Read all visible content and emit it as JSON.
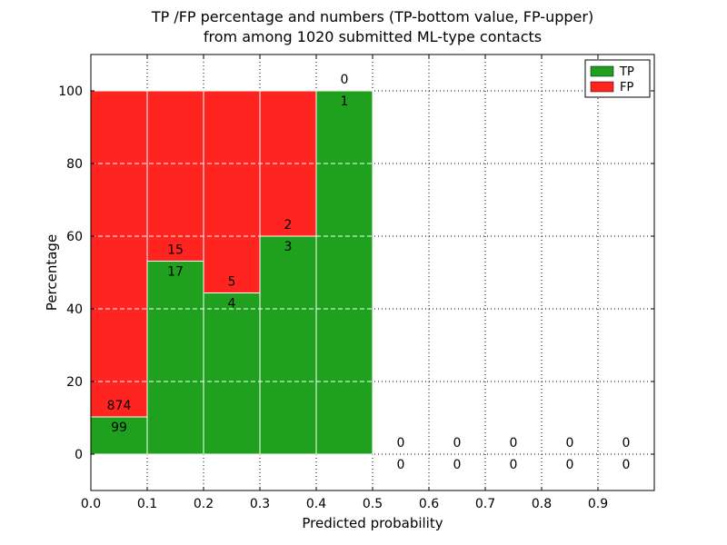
{
  "title": {
    "line1": "TP /FP percentage and numbers (TP-bottom value, FP-upper)",
    "line2": "from among 1020 submitted ML-type contacts"
  },
  "chart_data": {
    "type": "bar",
    "stacked": true,
    "title": "TP /FP percentage and numbers (TP-bottom value, FP-upper)\nfrom among 1020 submitted ML-type contacts",
    "xlabel": "Predicted probability",
    "ylabel": "Percentage",
    "total_contacts": 1020,
    "xlim": [
      0.0,
      1.0
    ],
    "ylim": [
      -10,
      110
    ],
    "xticks": [
      0.0,
      0.1,
      0.2,
      0.3,
      0.4,
      0.5,
      0.6,
      0.7,
      0.8,
      0.9
    ],
    "xtick_labels": [
      "0.0",
      "0.1",
      "0.2",
      "0.3",
      "0.4",
      "0.5",
      "0.6",
      "0.7",
      "0.8",
      "0.9"
    ],
    "yticks": [
      0,
      20,
      40,
      60,
      80,
      100
    ],
    "ytick_labels": [
      "0",
      "20",
      "40",
      "60",
      "80",
      "100"
    ],
    "grid": true,
    "tp_color": "#1fa01f",
    "fp_color": "#ff2420",
    "bins": [
      {
        "range": "0.0-0.1",
        "start": 0.0,
        "end": 0.1,
        "tp_count": 99,
        "fp_count": 874,
        "tp_pct": 10.2
      },
      {
        "range": "0.1-0.2",
        "start": 0.1,
        "end": 0.2,
        "tp_count": 17,
        "fp_count": 15,
        "tp_pct": 53.1
      },
      {
        "range": "0.2-0.3",
        "start": 0.2,
        "end": 0.3,
        "tp_count": 4,
        "fp_count": 5,
        "tp_pct": 44.4
      },
      {
        "range": "0.3-0.4",
        "start": 0.3,
        "end": 0.4,
        "tp_count": 3,
        "fp_count": 2,
        "tp_pct": 60.0
      },
      {
        "range": "0.4-0.5",
        "start": 0.4,
        "end": 0.5,
        "tp_count": 1,
        "fp_count": 0,
        "tp_pct": 100.0
      },
      {
        "range": "0.5-0.6",
        "start": 0.5,
        "end": 0.6,
        "tp_count": 0,
        "fp_count": 0,
        "tp_pct": 0
      },
      {
        "range": "0.6-0.7",
        "start": 0.6,
        "end": 0.7,
        "tp_count": 0,
        "fp_count": 0,
        "tp_pct": 0
      },
      {
        "range": "0.7-0.8",
        "start": 0.7,
        "end": 0.8,
        "tp_count": 0,
        "fp_count": 0,
        "tp_pct": 0
      },
      {
        "range": "0.8-0.9",
        "start": 0.8,
        "end": 0.9,
        "tp_count": 0,
        "fp_count": 0,
        "tp_pct": 0
      },
      {
        "range": "0.9-1.0",
        "start": 0.9,
        "end": 1.0,
        "tp_count": 0,
        "fp_count": 0,
        "tp_pct": 0
      }
    ],
    "legend": {
      "position": "upper right",
      "entries": [
        {
          "label": "TP",
          "color": "#1fa01f"
        },
        {
          "label": "FP",
          "color": "#ff2420"
        }
      ]
    }
  }
}
